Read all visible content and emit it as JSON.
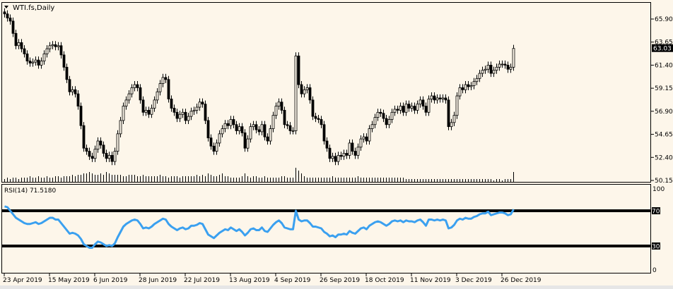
{
  "header": {
    "title": "WTI.fs,Daily",
    "menu_icon": "triangle-down-icon"
  },
  "rsi_pane": {
    "label": "RSI(14) 71.5180"
  },
  "colors": {
    "background": "#fdf6ea",
    "candle": "#000000",
    "rsi_line": "#3aa0f0",
    "level_line": "#000000"
  },
  "chart_data": [
    {
      "type": "candlestick",
      "symbol": "WTI.fs",
      "timeframe": "Daily",
      "y_ticks": [
        "65.90",
        "63.65",
        "61.40",
        "59.15",
        "56.90",
        "54.65",
        "52.40",
        "50.15"
      ],
      "ylim": [
        50.15,
        65.9
      ],
      "current_price": "63.03",
      "x_tick_labels": [
        "23 Apr 2019",
        "15 May 2019",
        "6 Jun 2019",
        "28 Jun 2019",
        "22 Jul 2019",
        "13 Aug 2019",
        "4 Sep 2019",
        "26 Sep 2019",
        "18 Oct 2019",
        "11 Nov 2019",
        "3 Dec 2019",
        "26 Dec 2019"
      ],
      "x_tick_every_bars": 16,
      "close": [
        66.4,
        66.0,
        65.7,
        64.5,
        63.3,
        63.6,
        63.0,
        62.5,
        61.8,
        61.6,
        61.7,
        61.9,
        61.4,
        61.8,
        62.5,
        63.0,
        63.3,
        63.4,
        63.2,
        63.3,
        62.4,
        61.2,
        60.0,
        58.8,
        59.0,
        58.6,
        57.4,
        55.5,
        53.3,
        53.0,
        52.5,
        52.3,
        53.2,
        54.0,
        53.6,
        52.8,
        52.3,
        52.6,
        52.0,
        53.0,
        54.7,
        56.0,
        57.4,
        58.0,
        58.6,
        59.2,
        59.5,
        59.2,
        58.0,
        56.8,
        57.0,
        56.6,
        57.2,
        58.0,
        58.8,
        59.6,
        60.2,
        60.0,
        58.1,
        57.2,
        56.8,
        56.2,
        56.6,
        56.8,
        56.0,
        56.4,
        56.9,
        57.0,
        57.3,
        57.8,
        57.6,
        56.0,
        54.3,
        53.5,
        53.0,
        53.8,
        54.7,
        55.2,
        55.7,
        55.5,
        56.1,
        55.6,
        55.0,
        55.4,
        54.8,
        53.3,
        54.2,
        55.4,
        55.6,
        55.1,
        54.9,
        55.6,
        54.4,
        54.0,
        55.2,
        56.5,
        57.4,
        57.8,
        57.0,
        55.6,
        55.5,
        55.0,
        55.0,
        62.3,
        59.5,
        58.6,
        59.0,
        59.2,
        58.0,
        56.4,
        56.2,
        56.1,
        55.6,
        54.0,
        53.3,
        52.3,
        52.5,
        52.0,
        52.6,
        52.5,
        52.8,
        52.6,
        53.8,
        53.0,
        52.6,
        53.4,
        54.2,
        54.4,
        54.0,
        55.2,
        55.6,
        56.3,
        56.8,
        56.7,
        56.2,
        55.6,
        56.1,
        56.8,
        57.1,
        57.0,
        57.4,
        56.8,
        57.6,
        57.2,
        57.4,
        57.0,
        57.6,
        58.0,
        57.4,
        56.8,
        58.1,
        58.4,
        58.0,
        58.2,
        58.1,
        58.2,
        58.0,
        55.4,
        55.8,
        56.5,
        58.4,
        59.2,
        59.0,
        59.5,
        59.3,
        59.4,
        59.8,
        60.1,
        60.6,
        60.9,
        61.0,
        61.4,
        60.6,
        60.9,
        61.2,
        61.5,
        61.5,
        61.4,
        61.0,
        61.2,
        63.03
      ],
      "volume": [
        2,
        3,
        2,
        3,
        3,
        2,
        3,
        3,
        3,
        4,
        3,
        3,
        4,
        3,
        3,
        4,
        3,
        3,
        4,
        4,
        3,
        4,
        4,
        4,
        5,
        4,
        5,
        5,
        6,
        6,
        7,
        6,
        5,
        5,
        6,
        5,
        7,
        6,
        5,
        5,
        5,
        5,
        4,
        4,
        5,
        5,
        5,
        4,
        4,
        5,
        4,
        4,
        4,
        4,
        4,
        5,
        4,
        4,
        3,
        4,
        4,
        4,
        3,
        4,
        4,
        4,
        4,
        4,
        5,
        4,
        5,
        4,
        6,
        5,
        4,
        4,
        5,
        6,
        4,
        4,
        3,
        3,
        3,
        3,
        4,
        6,
        4,
        3,
        4,
        4,
        3,
        3,
        4,
        3,
        3,
        3,
        3,
        3,
        4,
        4,
        3,
        3,
        3,
        10,
        8,
        6,
        4,
        3,
        3,
        3,
        3,
        3,
        3,
        3,
        3,
        3,
        4,
        3,
        3,
        3,
        3,
        3,
        3,
        3,
        3,
        4,
        3,
        3,
        3,
        3,
        3,
        3,
        3,
        3,
        3,
        3,
        3,
        3,
        3,
        3,
        3,
        3,
        2,
        2,
        2,
        2,
        2,
        2,
        2,
        2,
        2,
        2,
        2,
        2,
        2,
        2,
        2,
        2,
        2,
        2,
        2,
        2,
        2,
        2,
        2,
        2,
        2,
        2,
        2,
        2,
        2,
        2,
        2,
        1,
        2,
        2,
        1,
        2,
        2,
        2,
        7
      ]
    },
    {
      "type": "line",
      "name": "RSI(14)",
      "last_value": 71.518,
      "ylim": [
        0,
        100
      ],
      "y_ticks": [
        "100",
        "70",
        "30",
        "0"
      ],
      "levels": [
        70,
        30
      ],
      "values": [
        75,
        74,
        70,
        66,
        62,
        60,
        58,
        56,
        55,
        55,
        56,
        57,
        55,
        56,
        58,
        60,
        62,
        62,
        60,
        60,
        56,
        52,
        48,
        44,
        45,
        44,
        42,
        38,
        32,
        30,
        28,
        28,
        32,
        35,
        34,
        32,
        30,
        31,
        30,
        33,
        40,
        46,
        52,
        55,
        57,
        59,
        60,
        59,
        55,
        50,
        51,
        50,
        52,
        55,
        57,
        59,
        61,
        60,
        55,
        52,
        50,
        48,
        50,
        51,
        49,
        50,
        53,
        53,
        54,
        56,
        55,
        49,
        43,
        41,
        39,
        42,
        45,
        47,
        49,
        48,
        51,
        49,
        47,
        49,
        46,
        42,
        45,
        49,
        50,
        48,
        48,
        51,
        47,
        46,
        50,
        54,
        57,
        59,
        56,
        51,
        50,
        49,
        49,
        70,
        60,
        58,
        59,
        59,
        56,
        52,
        52,
        51,
        50,
        46,
        44,
        41,
        42,
        40,
        43,
        43,
        44,
        43,
        47,
        45,
        44,
        47,
        50,
        51,
        49,
        53,
        55,
        57,
        58,
        57,
        55,
        53,
        55,
        58,
        59,
        58,
        59,
        57,
        59,
        58,
        58,
        57,
        59,
        60,
        57,
        53,
        60,
        60,
        59,
        60,
        59,
        60,
        59,
        50,
        51,
        54,
        59,
        61,
        60,
        62,
        61,
        61,
        63,
        64,
        66,
        67,
        67,
        69,
        65,
        66,
        67,
        68,
        68,
        67,
        65,
        66,
        71.518
      ]
    }
  ]
}
